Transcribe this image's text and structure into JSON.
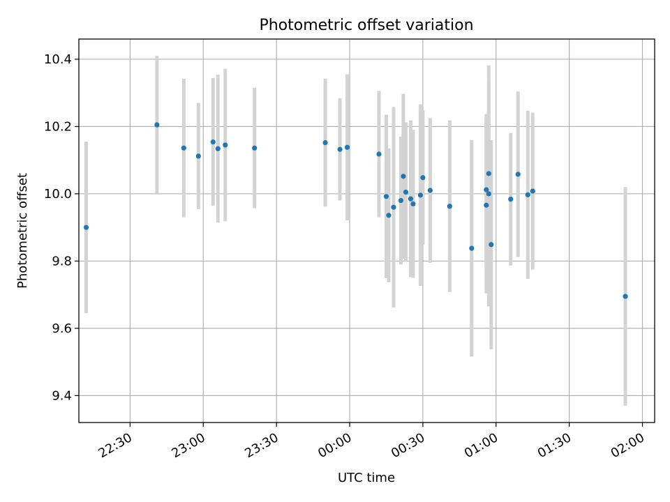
{
  "chart_data": {
    "type": "scatter",
    "title": "Photometric offset variation",
    "xlabel": "UTC time",
    "ylabel": "Photometric offset",
    "x_ticks": [
      "22:30",
      "23:00",
      "23:30",
      "00:00",
      "00:30",
      "01:00",
      "01:30",
      "02:00"
    ],
    "y_ticks": [
      "9.4",
      "9.6",
      "9.8",
      "10.0",
      "10.2",
      "10.4"
    ],
    "ylim": [
      9.32,
      10.46
    ],
    "xlim": [
      "22:09",
      "02:05"
    ],
    "grid": true,
    "marker_color": "#1f77b4",
    "errorbar_color": "#d3d3d3",
    "series": [
      {
        "points": [
          {
            "t": "22:12",
            "y": 9.9,
            "err": 0.255
          },
          {
            "t": "22:41",
            "y": 10.205,
            "err": 0.205
          },
          {
            "t": "22:52",
            "y": 10.136,
            "err": 0.206
          },
          {
            "t": "22:58",
            "y": 10.112,
            "err": 0.158
          },
          {
            "t": "23:04",
            "y": 10.154,
            "err": 0.19
          },
          {
            "t": "23:06",
            "y": 10.134,
            "err": 0.22
          },
          {
            "t": "23:09",
            "y": 10.145,
            "err": 0.227
          },
          {
            "t": "23:21",
            "y": 10.136,
            "err": 0.179
          },
          {
            "t": "23:50",
            "y": 10.152,
            "err": 0.19
          },
          {
            "t": "23:56",
            "y": 10.132,
            "err": 0.152
          },
          {
            "t": "23:59",
            "y": 10.138,
            "err": 0.217
          },
          {
            "t": "00:12",
            "y": 10.118,
            "err": 0.188
          },
          {
            "t": "00:15",
            "y": 9.992,
            "err": 0.243
          },
          {
            "t": "00:16",
            "y": 9.936,
            "err": 0.199
          },
          {
            "t": "00:18",
            "y": 9.96,
            "err": 0.298
          },
          {
            "t": "00:21",
            "y": 9.98,
            "err": 0.19
          },
          {
            "t": "00:22",
            "y": 10.052,
            "err": 0.245
          },
          {
            "t": "00:23",
            "y": 10.005,
            "err": 0.207
          },
          {
            "t": "00:25",
            "y": 9.985,
            "err": 0.233
          },
          {
            "t": "00:26",
            "y": 9.97,
            "err": 0.22
          },
          {
            "t": "00:29",
            "y": 9.996,
            "err": 0.27
          },
          {
            "t": "00:30",
            "y": 10.048,
            "err": 0.2
          },
          {
            "t": "00:33",
            "y": 10.01,
            "err": 0.215
          },
          {
            "t": "00:41",
            "y": 9.963,
            "err": 0.255
          },
          {
            "t": "00:50",
            "y": 9.838,
            "err": 0.322
          },
          {
            "t": "00:56",
            "y": 10.012,
            "err": 0.225
          },
          {
            "t": "00:56",
            "y": 9.966,
            "err": 0.262
          },
          {
            "t": "00:57",
            "y": 10.06,
            "err": 0.322
          },
          {
            "t": "00:57",
            "y": 10.0,
            "err": 0.335
          },
          {
            "t": "00:58",
            "y": 9.849,
            "err": 0.311
          },
          {
            "t": "01:06",
            "y": 9.984,
            "err": 0.197
          },
          {
            "t": "01:09",
            "y": 10.058,
            "err": 0.246
          },
          {
            "t": "01:13",
            "y": 9.997,
            "err": 0.25
          },
          {
            "t": "01:15",
            "y": 10.008,
            "err": 0.233
          },
          {
            "t": "01:53",
            "y": 9.695,
            "err": 0.325
          }
        ]
      }
    ]
  }
}
